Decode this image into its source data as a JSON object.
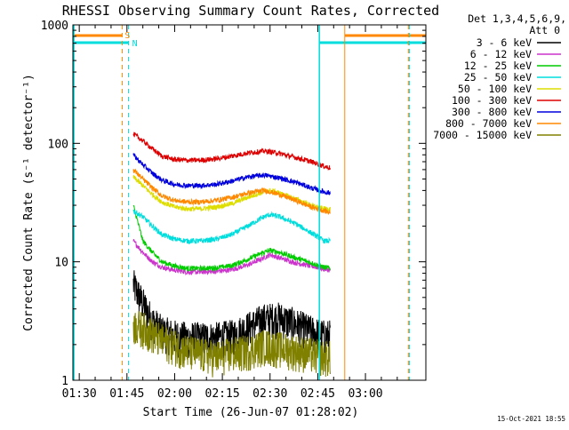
{
  "chart_data": {
    "type": "line",
    "title": "RHESSI Observing Summary Count Rates, Corrected",
    "xlabel": "Start Time (26-Jun-07 01:28:02)",
    "ylabel": "Corrected Count Rate (s⁻¹ detector⁻¹)",
    "x_range_minutes": [
      0,
      111
    ],
    "ylim": [
      1,
      1000
    ],
    "y_scale": "log",
    "x_ticks": [
      {
        "t": 2,
        "label": "01:30"
      },
      {
        "t": 17,
        "label": "01:45"
      },
      {
        "t": 32,
        "label": "02:00"
      },
      {
        "t": 47,
        "label": "02:15"
      },
      {
        "t": 62,
        "label": "02:30"
      },
      {
        "t": 77,
        "label": "02:45"
      },
      {
        "t": 92,
        "label": "03:00"
      }
    ],
    "y_ticks": [
      {
        "v": 1,
        "label": "1"
      },
      {
        "v": 10,
        "label": "10"
      },
      {
        "v": 100,
        "label": "100"
      },
      {
        "v": 1000,
        "label": "1000"
      }
    ],
    "legend_header": [
      "Det 1,3,4,5,6,9,",
      "Att 0"
    ],
    "legend_position": "right",
    "series": [
      {
        "name": "3 - 6 keV",
        "color": "#000000",
        "t": [
          19,
          22,
          25,
          28,
          32,
          36,
          40,
          45,
          50,
          55,
          60,
          65,
          70,
          75,
          79,
          81
        ],
        "values": [
          6.5,
          4.5,
          3.2,
          2.6,
          2.4,
          2.3,
          2.3,
          2.3,
          2.4,
          2.8,
          3.3,
          3.4,
          3.0,
          2.6,
          2.4,
          2.4
        ]
      },
      {
        "name": "6 - 12 keV",
        "color": "#cc33cc",
        "t": [
          19,
          22,
          25,
          28,
          32,
          36,
          40,
          45,
          50,
          55,
          60,
          62,
          65,
          70,
          75,
          79,
          81
        ],
        "values": [
          15,
          12,
          10,
          9,
          8.5,
          8.2,
          8.2,
          8.3,
          8.6,
          9.4,
          10.8,
          11.5,
          10.8,
          9.8,
          9.2,
          8.7,
          8.5
        ]
      },
      {
        "name": "12 - 25 keV",
        "color": "#00cc00",
        "t": [
          19,
          22,
          25,
          28,
          32,
          36,
          40,
          45,
          50,
          55,
          60,
          62,
          65,
          70,
          75,
          79,
          81
        ],
        "values": [
          30,
          15,
          12,
          10,
          9.2,
          8.8,
          8.8,
          8.9,
          9.3,
          10.5,
          12,
          12.5,
          12,
          10.8,
          9.8,
          9.0,
          8.8
        ]
      },
      {
        "name": "25 - 50 keV",
        "color": "#00dddd",
        "t": [
          19,
          22,
          25,
          28,
          32,
          36,
          40,
          45,
          50,
          55,
          60,
          62,
          65,
          70,
          75,
          79,
          81
        ],
        "values": [
          27,
          24,
          20,
          17,
          15.5,
          15,
          15,
          15.5,
          17,
          20,
          24,
          25,
          24,
          21,
          17.5,
          15,
          15
        ]
      },
      {
        "name": "50 - 100 keV",
        "color": "#dddd00",
        "t": [
          19,
          22,
          25,
          28,
          32,
          36,
          40,
          45,
          50,
          55,
          60,
          62,
          65,
          70,
          75,
          79,
          81
        ],
        "values": [
          52,
          44,
          37,
          32,
          29,
          28,
          28,
          29,
          31,
          35,
          39,
          40,
          38,
          34,
          30,
          28,
          28
        ]
      },
      {
        "name": "100 - 300 keV",
        "color": "#dd0000",
        "t": [
          19,
          22,
          25,
          28,
          32,
          36,
          40,
          45,
          50,
          55,
          60,
          62,
          65,
          70,
          75,
          79,
          81
        ],
        "values": [
          120,
          105,
          90,
          78,
          73,
          72,
          72,
          74,
          78,
          83,
          86,
          85,
          82,
          76,
          70,
          64,
          62
        ]
      },
      {
        "name": "300 - 800 keV",
        "color": "#0000dd",
        "t": [
          19,
          22,
          25,
          28,
          32,
          36,
          40,
          45,
          50,
          55,
          60,
          62,
          65,
          70,
          75,
          79,
          81
        ],
        "values": [
          80,
          66,
          56,
          49,
          45,
          44,
          44,
          45,
          48,
          52,
          54,
          53,
          51,
          47,
          42,
          39,
          38
        ]
      },
      {
        "name": "800 - 7000 keV",
        "color": "#ff8800",
        "t": [
          19,
          22,
          25,
          28,
          32,
          36,
          40,
          45,
          50,
          55,
          60,
          62,
          65,
          70,
          75,
          79,
          81
        ],
        "values": [
          60,
          50,
          42,
          36,
          33,
          32,
          32,
          33,
          35,
          38,
          40,
          39,
          37,
          33,
          29,
          27,
          26
        ]
      },
      {
        "name": "7000 - 15000 keV",
        "color": "#808000",
        "t": [
          19,
          22,
          25,
          28,
          32,
          36,
          40,
          45,
          50,
          55,
          60,
          65,
          70,
          75,
          79,
          81
        ],
        "values": [
          3.0,
          2.8,
          2.5,
          2.2,
          2.0,
          1.8,
          1.7,
          1.6,
          1.7,
          1.8,
          2.0,
          1.9,
          1.8,
          1.7,
          1.6,
          1.6
        ]
      }
    ],
    "flags": [
      {
        "label": "S",
        "color": "#ff8800"
      },
      {
        "label": "N",
        "color": "#00dddd"
      }
    ],
    "timestamp": "15-Oct-2021 18:55"
  }
}
